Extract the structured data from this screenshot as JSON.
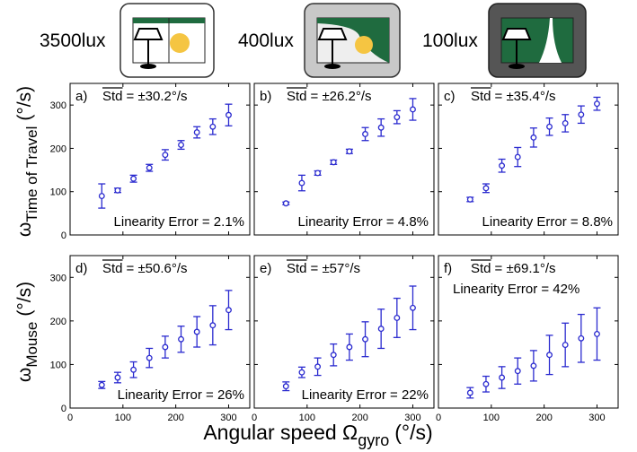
{
  "header": {
    "labels": [
      "3500lux",
      "400lux",
      "100lux"
    ]
  },
  "figure": {
    "x_label": {
      "text": "Angular speed Ω",
      "subscript": "gyro",
      "unit": "(°/s)"
    },
    "row_labels": [
      {
        "symbol": "ω",
        "subscript": "Time of Travel",
        "unit": "(°/s)"
      },
      {
        "symbol": "ω",
        "subscript": "Mouse",
        "unit": "(°/s)"
      }
    ]
  },
  "chart_data": [
    {
      "type": "errorbar",
      "panel": "a)",
      "std_name": "Std",
      "std_value": "= ±30.2°/s",
      "annotation": "Linearity Error = 2.1%",
      "color": "#2a2acf",
      "x": [
        60,
        90,
        120,
        150,
        180,
        210,
        240,
        270,
        300
      ],
      "values": [
        90,
        103,
        130,
        155,
        185,
        208,
        237,
        250,
        277
      ],
      "errors": [
        28,
        5,
        8,
        8,
        12,
        10,
        13,
        18,
        25
      ],
      "xlim": [
        0,
        340
      ],
      "ylim": [
        0,
        350
      ],
      "xticks": [
        0,
        100,
        200,
        300
      ],
      "yticks": [
        0,
        100,
        200,
        300
      ]
    },
    {
      "type": "errorbar",
      "panel": "b)",
      "std_name": "Std",
      "std_value": "= ±26.2°/s",
      "annotation": "Linearity Error = 4.8%",
      "color": "#2a2acf",
      "x": [
        60,
        90,
        120,
        150,
        180,
        210,
        240,
        270,
        300
      ],
      "values": [
        73,
        120,
        143,
        168,
        193,
        233,
        248,
        272,
        290
      ],
      "errors": [
        3,
        18,
        5,
        5,
        5,
        15,
        20,
        15,
        25
      ],
      "xlim": [
        0,
        340
      ],
      "ylim": [
        0,
        350
      ],
      "xticks": [
        0,
        100,
        200,
        300
      ],
      "yticks": [
        0,
        100,
        200,
        300
      ]
    },
    {
      "type": "errorbar",
      "panel": "c)",
      "std_name": "Std",
      "std_value": "= ±35.4°/s",
      "annotation": "Linearity Error = 8.8%",
      "color": "#2a2acf",
      "x": [
        60,
        90,
        120,
        150,
        180,
        210,
        240,
        270,
        300
      ],
      "values": [
        82,
        108,
        160,
        180,
        225,
        250,
        258,
        278,
        303
      ],
      "errors": [
        5,
        10,
        15,
        22,
        22,
        20,
        20,
        20,
        15
      ],
      "xlim": [
        0,
        340
      ],
      "ylim": [
        0,
        350
      ],
      "xticks": [
        0,
        100,
        200,
        300
      ],
      "yticks": [
        0,
        100,
        200,
        300
      ]
    },
    {
      "type": "errorbar",
      "panel": "d)",
      "std_name": "Std",
      "std_value": "= ±50.6°/s",
      "annotation": "Linearity Error = 26%",
      "color": "#2a2acf",
      "x": [
        60,
        90,
        120,
        150,
        180,
        210,
        240,
        270,
        300
      ],
      "values": [
        53,
        70,
        88,
        115,
        140,
        158,
        175,
        190,
        225
      ],
      "errors": [
        8,
        12,
        18,
        22,
        25,
        30,
        35,
        45,
        45
      ],
      "xlim": [
        0,
        340
      ],
      "ylim": [
        0,
        350
      ],
      "xticks": [
        0,
        100,
        200,
        300
      ],
      "yticks": [
        0,
        100,
        200,
        300
      ]
    },
    {
      "type": "errorbar",
      "panel": "e)",
      "std_name": "Std",
      "std_value": "= ±57°/s",
      "annotation": "Linearity Error = 22%",
      "color": "#2a2acf",
      "x": [
        60,
        90,
        120,
        150,
        180,
        210,
        240,
        270,
        300
      ],
      "values": [
        50,
        82,
        95,
        122,
        140,
        158,
        182,
        207,
        230
      ],
      "errors": [
        10,
        12,
        20,
        25,
        30,
        40,
        45,
        45,
        50
      ],
      "xlim": [
        0,
        340
      ],
      "ylim": [
        0,
        350
      ],
      "xticks": [
        0,
        100,
        200,
        300
      ],
      "yticks": [
        0,
        100,
        200,
        300
      ]
    },
    {
      "type": "errorbar",
      "panel": "f)",
      "std_name": "Std",
      "std_value": "= ±69.1°/s",
      "annotation": "Linearity Error = 42%",
      "color": "#2a2acf",
      "x": [
        60,
        90,
        120,
        150,
        180,
        210,
        240,
        270,
        300
      ],
      "values": [
        35,
        55,
        70,
        85,
        97,
        122,
        145,
        160,
        170
      ],
      "errors": [
        12,
        18,
        25,
        30,
        35,
        45,
        50,
        55,
        60
      ],
      "xlim": [
        0,
        340
      ],
      "ylim": [
        0,
        350
      ],
      "xticks": [
        0,
        100,
        200,
        300
      ],
      "yticks": [
        0,
        100,
        200,
        300
      ]
    }
  ]
}
